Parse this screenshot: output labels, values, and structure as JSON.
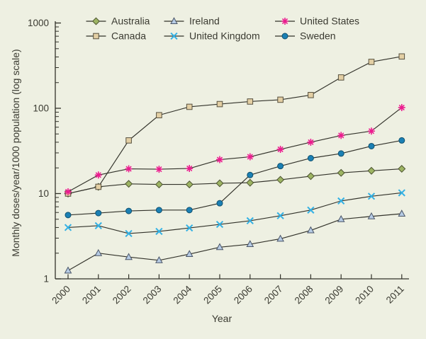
{
  "figure": {
    "background": "#eef0e2",
    "ink": "#3a3a31",
    "line_color": "#32322a"
  },
  "chart_data": {
    "type": "line",
    "title": "",
    "xlabel": "Year",
    "ylabel": "Monthly doses/year/1000 population (log scale)",
    "x": [
      2000,
      2001,
      2002,
      2003,
      2004,
      2005,
      2006,
      2007,
      2008,
      2009,
      2010,
      2011
    ],
    "y_scale": "log",
    "ylim": [
      1,
      1000
    ],
    "y_ticks": [
      1,
      10,
      100,
      1000
    ],
    "grid": "off",
    "legend_position": "top",
    "series": [
      {
        "name": "Australia",
        "marker": "diamond",
        "color": "#9db463",
        "edge": "#4c5430",
        "values": [
          10,
          12,
          13,
          12.8,
          12.8,
          13.2,
          13.4,
          14.5,
          16,
          17.5,
          18.5,
          19.5
        ]
      },
      {
        "name": "Canada",
        "marker": "square",
        "color": "#e3cfa4",
        "edge": "#57503e",
        "values": [
          10,
          12,
          42,
          83,
          104,
          112,
          120,
          126,
          143,
          230,
          350,
          405
        ]
      },
      {
        "name": "Ireland",
        "marker": "triangle",
        "color": "#b6cbe4",
        "edge": "#4a5568",
        "values": [
          1.25,
          2.0,
          1.8,
          1.65,
          1.95,
          2.35,
          2.55,
          2.95,
          3.7,
          5.0,
          5.4,
          5.8
        ]
      },
      {
        "name": "United Kingdom",
        "marker": "x",
        "color": "#33b1e4",
        "edge": "#33b1e4",
        "values": [
          4.0,
          4.2,
          3.4,
          3.6,
          3.95,
          4.35,
          4.8,
          5.5,
          6.4,
          8.2,
          9.3,
          10.2
        ]
      },
      {
        "name": "United States",
        "marker": "asterisk",
        "color": "#ec1c8f",
        "edge": "#ec1c8f",
        "values": [
          10.5,
          16.5,
          19.5,
          19.3,
          19.7,
          25,
          27,
          33,
          40,
          48,
          54,
          102
        ]
      },
      {
        "name": "Sweden",
        "marker": "circle",
        "color": "#1b80b4",
        "edge": "#0f506e",
        "values": [
          5.6,
          5.9,
          6.25,
          6.4,
          6.4,
          7.7,
          16.5,
          21,
          26,
          29.5,
          36,
          42
        ]
      }
    ]
  }
}
